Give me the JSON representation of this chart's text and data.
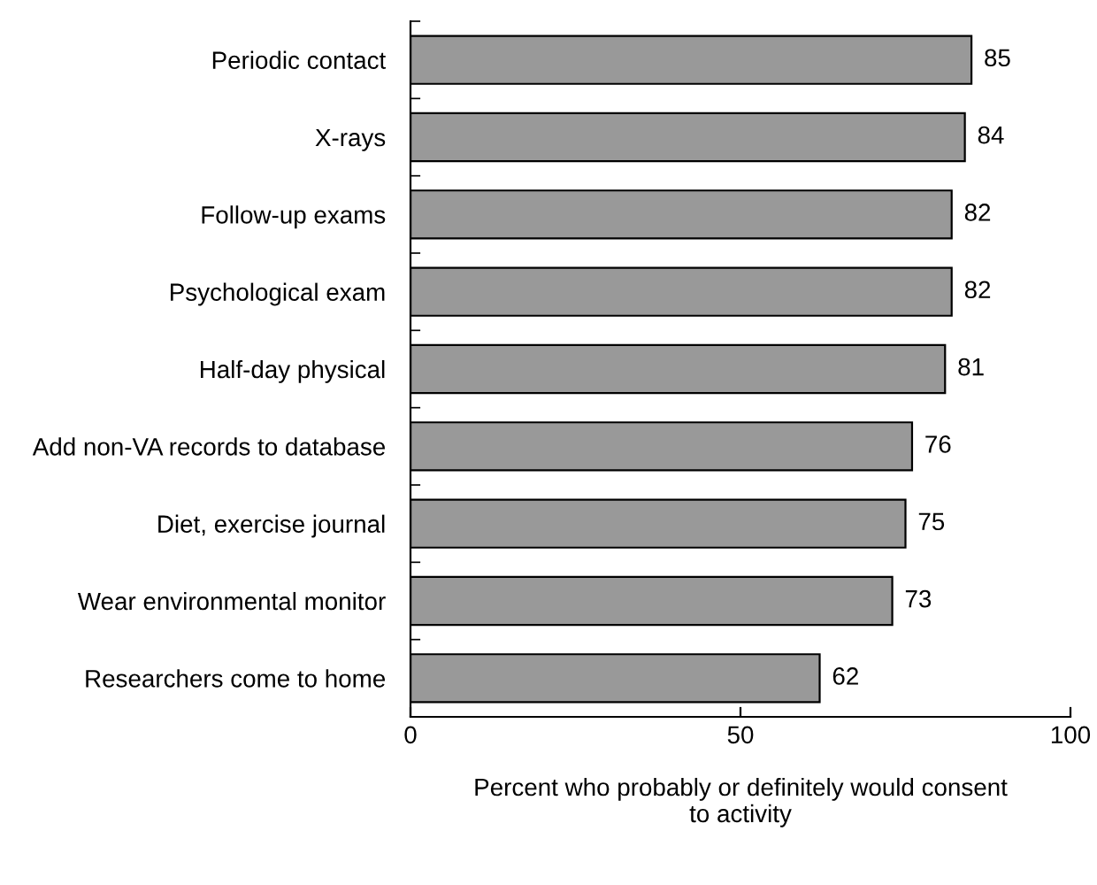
{
  "chart_data": {
    "type": "bar",
    "orientation": "horizontal",
    "categories": [
      "Periodic contact",
      "X-rays",
      "Follow-up exams",
      "Psychological exam",
      "Half-day physical",
      "Add non-VA records to database",
      "Diet, exercise journal",
      "Wear environmental monitor",
      "Researchers come to home"
    ],
    "values": [
      85,
      84,
      82,
      82,
      81,
      76,
      75,
      73,
      62
    ],
    "color": "#999999",
    "xlim": [
      0,
      100
    ],
    "xticks": [
      0,
      50,
      100
    ],
    "xlabel": "Percent who probably or definitely would consent\nto activity",
    "data_labels": true,
    "grid": false,
    "legend": false
  }
}
